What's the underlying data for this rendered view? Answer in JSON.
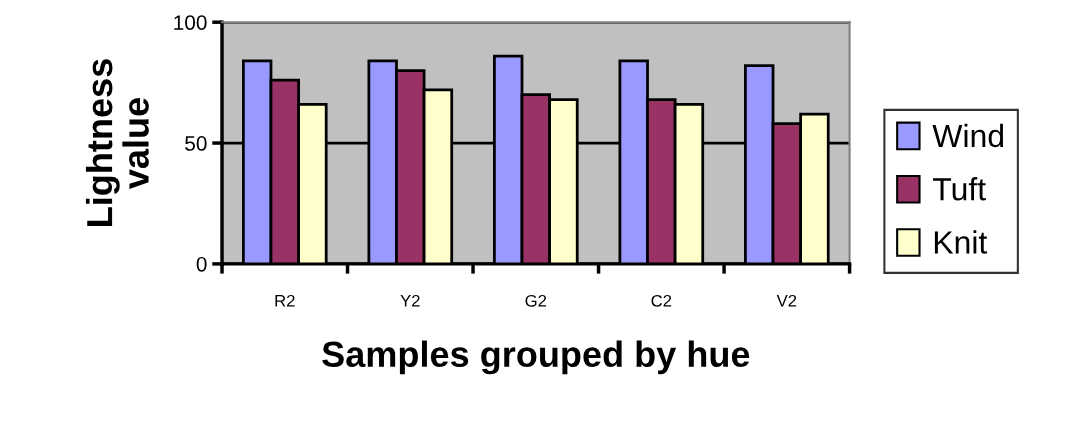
{
  "chart_data": {
    "type": "bar",
    "xlabel": "Samples grouped by hue",
    "ylabel": "Lightness\nvalue",
    "categories": [
      "R2",
      "Y2",
      "G2",
      "C2",
      "V2"
    ],
    "series": [
      {
        "name": "Wind",
        "color": "#9999ff",
        "values": [
          84,
          84,
          86,
          84,
          82
        ]
      },
      {
        "name": "Tuft",
        "color": "#993366",
        "values": [
          76,
          80,
          70,
          68,
          58
        ]
      },
      {
        "name": "Knit",
        "color": "#ffffcc",
        "values": [
          66,
          72,
          68,
          66,
          62
        ]
      }
    ],
    "ylim": [
      0,
      100
    ],
    "yticks": [
      0,
      50,
      100
    ],
    "grid": "y",
    "legend": "right"
  }
}
